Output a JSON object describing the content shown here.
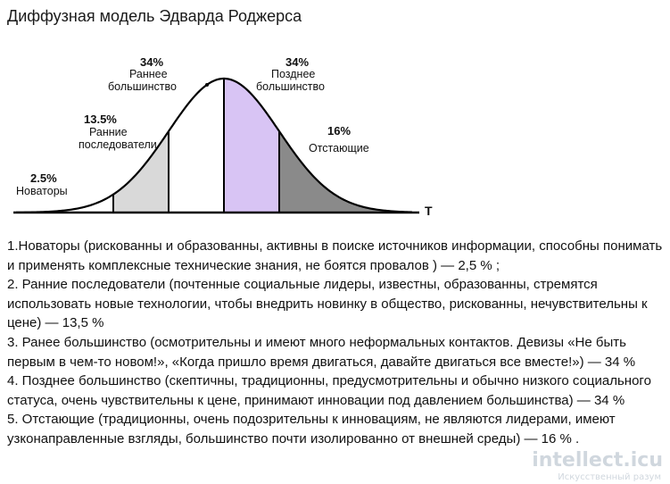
{
  "page": {
    "title": "Диффузная модель Эдварда Роджерса"
  },
  "chart_data": {
    "type": "area",
    "curve": "normal",
    "xlabel": "T",
    "ylabel": "",
    "title": "",
    "segments": [
      {
        "label": "Новаторы",
        "percent": "2.5%",
        "value": 2.5,
        "color": "#ffffff"
      },
      {
        "label": "Ранние последователи",
        "percent": "13.5%",
        "value": 13.5,
        "color": "#d9d9d9"
      },
      {
        "label": "Раннее большинство",
        "percent": "34%",
        "value": 34,
        "color": "#ffffff"
      },
      {
        "label": "Позднее большинство",
        "percent": "34%",
        "value": 34,
        "color": "#d8c4f4"
      },
      {
        "label": "Отстающие",
        "percent": "16%",
        "value": 16,
        "color": "#8a8a8a"
      }
    ]
  },
  "descriptions": [
    "1.Новаторы (рискованны и образованны, активны в поиске источников информации, способны понимать и применять комплексные технические знания, не боятся провалов ) — 2,5 % ;",
    "2. Ранние последователи (почтенные социальные лидеры, известны, образованны, стремятся использовать новые технологии, чтобы внедрить новинку в общество, рискованны, нечувствительны к цене) — 13,5 %",
    "3. Ранее большинство (осмотрительны и имеют много неформальных контактов. Девизы «Не быть первым в чем-то новом!», «Когда пришло время двигаться, давайте двигаться все вместе!») — 34 %",
    "4. Позднее большинство (скептичны, традиционны, предусмотрительны и обычно низкого социального статуса, очень чувствительны к цене, принимают инновации под давлением большинства)  — 34 %",
    "5. Отстающие (традиционны, очень подозрительны к инновациям, не являются лидерами, имеют узконаправленные взгляды, большинство почти изолированно от внешней среды) — 16 % ."
  ],
  "watermark": {
    "text": "intellect.icu",
    "sub": "Искусственный разум"
  }
}
